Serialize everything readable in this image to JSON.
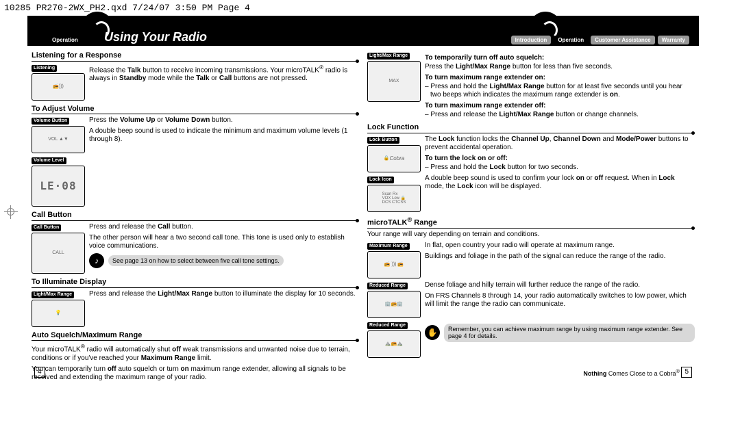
{
  "header_line": "10285 PR270-2WX_PH2.qxd  7/24/07  3:50 PM  Page 4",
  "left_page": {
    "tabs": [
      {
        "label": "Operation",
        "active": true
      }
    ],
    "chapter": "Using Your Radio",
    "page_num": "4",
    "sections": {
      "listening": {
        "head": "Listening for a Response",
        "illus_label": "Listening",
        "body": "Release the <b>Talk</b> button to receive incoming transmissions. Your microTALK<sup>®</sup> radio is always in <b>Standby</b> mode while the <b>Talk</b> or <b>Call</b> buttons are not pressed."
      },
      "volume": {
        "head": "To Adjust Volume",
        "illus_label1": "Volume Button",
        "illus_label2": "Volume Level",
        "body1": "Press the <b>Volume Up</b> or <b>Volume Down</b> button.",
        "body2": "A double beep sound is used to indicate the minimum and maximum volume levels (1 through 8).",
        "lcd": "LE·08"
      },
      "call": {
        "head": "Call Button",
        "illus_label": "Call Button",
        "body1": "Press and release the <b>Call</b> button.",
        "body2": "The other person will hear a two second call tone. This tone is used only to establish voice communications.",
        "callout": "See page 13 on how to select between five call tone settings."
      },
      "illuminate": {
        "head": "To Illuminate Display",
        "illus_label": "Light/Max Range",
        "body": "Press and release the <b>Light/Max Range</b> button to illuminate the display for 10 seconds."
      },
      "squelch": {
        "head": "Auto Squelch/Maximum Range",
        "p1": "Your microTALK<sup>®</sup> radio will automatically shut <b>off</b> weak transmissions and unwanted noise due to terrain, conditions or if you've reached your <b>Maximum Range</b> limit.",
        "p2": "You can temporarily turn <b>off</b> auto squelch or turn <b>on</b> maximum range extender, allowing all signals to be received and extending the maximum range of your radio."
      }
    }
  },
  "right_page": {
    "tabs": [
      {
        "label": "Introduction",
        "active": false
      },
      {
        "label": "Operation",
        "active": true
      },
      {
        "label": "Customer Assistance",
        "active": false
      },
      {
        "label": "Warranty",
        "active": false
      }
    ],
    "page_num": "5",
    "footer": "<b>Nothing</b> Comes Close to a Cobra<sup>®</sup>",
    "sections": {
      "squelch_cont": {
        "illus_label": "Light/Max Range",
        "sub1": "To temporarily turn off auto squelch:",
        "body1": "Press the <b>Light/Max Range</b> button for less than five seconds.",
        "sub2": "To turn maximum range extender on:",
        "body2": "– Press and hold the <b>Light/Max Range</b> button for at least five seconds until you hear two beeps which indicates the maximum range extender is <b>on</b>.",
        "sub3": "To turn maximum range extender off:",
        "body3": "– Press and release the <b>Light/Max Range</b> button or change channels."
      },
      "lock": {
        "head": "Lock Function",
        "illus_label1": "Lock Button",
        "illus_label2": "Lock Icon",
        "body1": "The <b>Lock</b> function locks the <b>Channel Up</b>, <b>Channel Down</b> and <b>Mode/Power</b> buttons to prevent accidental operation.",
        "sub": "To turn the lock on or off:",
        "body2": "– Press and hold the <b>Lock</b> button for two seconds.",
        "body3": "A double beep sound is used to confirm your lock <b>on</b> or <b>off</b> request. When in <b>Lock</b> mode, the <b>Lock</b> icon will be displayed."
      },
      "range": {
        "head": "microTALK<sup>®</sup> Range",
        "intro": "Your range will vary depending on terrain and conditions.",
        "illus_label1": "Maximum Range",
        "body1": "In flat, open country your radio will operate at maximum range.",
        "illus_label2": "Reduced Range",
        "body2": "Buildings and foliage in the path of the signal can reduce the range of the radio.",
        "illus_label3": "Reduced Range",
        "body3": "Dense foliage and hilly terrain will further reduce the range of the radio.",
        "body4": "On FRS Channels 8 through 14, your radio automatically switches to low power, which will limit the range the radio can communicate.",
        "callout": "Remember, you can achieve maximum range by using maximum range extender. See page 4 for details."
      }
    }
  }
}
